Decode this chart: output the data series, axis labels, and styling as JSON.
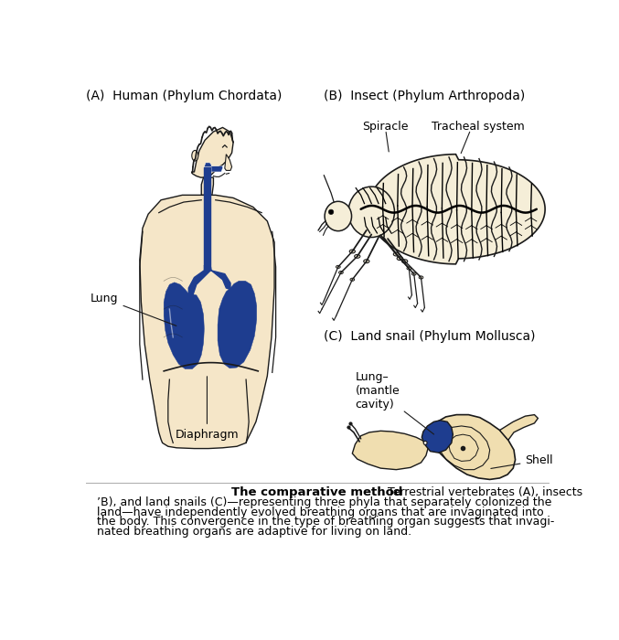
{
  "background_color": "#ffffff",
  "title_A": "(A)  Human (Phylum Chordata)",
  "title_B": "(B)  Insect (Phylum Arthropoda)",
  "title_C": "(C)  Land snail (Phylum Mollusca)",
  "label_lung_human": "Lung",
  "label_diaphragm": "Diaphragm",
  "label_spiracle": "Spiracle",
  "label_tracheal": "Tracheal system",
  "label_lung_snail": "Lung–\n(mantle\ncavity)",
  "label_shell": "Shell",
  "caption_bold": "The comparative method",
  "skin_color": "#f5e6c8",
  "lung_color": "#1e3d8f",
  "insect_fill": "#f5eed8",
  "snail_shell_color": "#f0deb0",
  "snail_lung_color": "#1e3d8f",
  "line_color": "#1a1a1a",
  "font_size_title": 10,
  "font_size_label": 9,
  "font_size_caption": 9
}
